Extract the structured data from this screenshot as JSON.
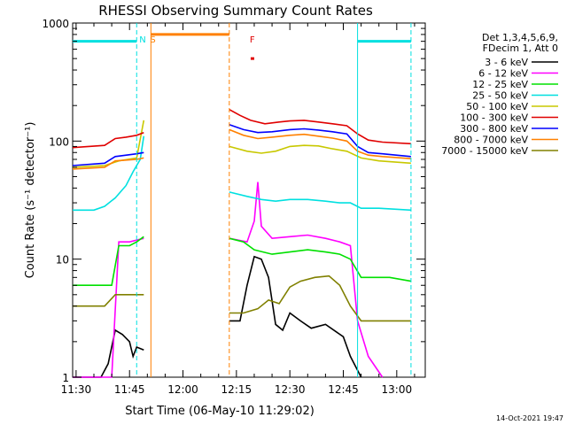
{
  "chart_data": {
    "type": "line",
    "title": "RHESSI Observing Summary Count Rates",
    "xlabel": "Start Time (06-May-10 11:29:02)",
    "ylabel": "Count Rate (s⁻¹ detector⁻¹)",
    "x_scale": "time",
    "y_scale": "log",
    "xlim": [
      "11:29:02",
      "13:08:00"
    ],
    "ylim": [
      1,
      1000
    ],
    "x_ticks": [
      "11:30",
      "11:45",
      "12:00",
      "12:15",
      "12:30",
      "12:45",
      "13:00"
    ],
    "y_ticks": [
      "1",
      "10",
      "100",
      "1000"
    ],
    "legend_header": [
      "Det 1,3,4,5,6,9,",
      "FDecim 1, Att 0"
    ],
    "legend_position": "right",
    "timestamp": "14-Oct-2021 19:47",
    "annotations": [
      {
        "text": "N",
        "x": "11:47",
        "color": "#00e0e0"
      },
      {
        "text": "S",
        "x": "11:50",
        "color": "#ff8000"
      },
      {
        "text": "F",
        "x": "12:18",
        "color": "#e00000"
      }
    ],
    "markers": [
      {
        "kind": "night-dashed",
        "x": "11:47",
        "color": "#00e0e0"
      },
      {
        "kind": "saa-solid",
        "x": "11:51",
        "color": "#ff8000"
      },
      {
        "kind": "saa-dashed",
        "x": "12:13",
        "color": "#ff8000"
      },
      {
        "kind": "night-solid",
        "x": "12:49",
        "color": "#00e0e0"
      },
      {
        "kind": "night-dashed",
        "x": "13:04",
        "color": "#00e0e0"
      }
    ],
    "flags": [
      {
        "name": "N",
        "color": "#00e0e0",
        "intervals": [
          [
            "11:29:02",
            "11:47:00"
          ],
          [
            "12:49:00",
            "13:04:00"
          ]
        ],
        "value": 700
      },
      {
        "name": "S",
        "color": "#ff8000",
        "intervals": [
          [
            "11:51:00",
            "12:13:00"
          ]
        ],
        "value": 800
      },
      {
        "name": "F",
        "color": "#e00000",
        "intervals": [
          [
            "12:19:00",
            "12:20:00"
          ]
        ],
        "value": 500
      }
    ],
    "series": [
      {
        "name": "3 - 6 keV",
        "color": "#000000",
        "segments": [
          [
            [
              "11:29:02",
              0.8
            ],
            [
              "11:37",
              0.8
            ],
            [
              "11:39",
              1.3
            ],
            [
              "11:41",
              2.5
            ],
            [
              "11:43",
              2.3
            ],
            [
              "11:45",
              2.0
            ],
            [
              "11:46",
              1.5
            ],
            [
              "11:47",
              1.8
            ],
            [
              "11:49",
              1.7
            ]
          ],
          [
            [
              "12:13",
              3.0
            ],
            [
              "12:16",
              3.0
            ],
            [
              "12:18",
              6.0
            ],
            [
              "12:20",
              10.5
            ],
            [
              "12:22",
              10.0
            ],
            [
              "12:24",
              7.0
            ],
            [
              "12:26",
              2.8
            ],
            [
              "12:28",
              2.5
            ],
            [
              "12:30",
              3.5
            ],
            [
              "12:33",
              3.0
            ],
            [
              "12:36",
              2.6
            ],
            [
              "12:40",
              2.8
            ],
            [
              "12:45",
              2.2
            ],
            [
              "12:47",
              1.5
            ],
            [
              "12:50",
              1.0
            ]
          ]
        ]
      },
      {
        "name": "6 - 12 keV",
        "color": "#ff00ff",
        "segments": [
          [
            [
              "11:29:02",
              0.8
            ],
            [
              "11:40",
              0.8
            ],
            [
              "11:42",
              14.0
            ],
            [
              "11:45",
              14.0
            ],
            [
              "11:49",
              15.0
            ]
          ],
          [
            [
              "12:13",
              15.0
            ],
            [
              "12:18",
              14.0
            ],
            [
              "12:20",
              21.0
            ],
            [
              "12:21",
              45.0
            ],
            [
              "12:22",
              19.0
            ],
            [
              "12:25",
              15.0
            ],
            [
              "12:30",
              15.5
            ],
            [
              "12:35",
              16.0
            ],
            [
              "12:40",
              15.0
            ],
            [
              "12:44",
              14.0
            ],
            [
              "12:47",
              13.0
            ],
            [
              "12:49",
              3.0
            ],
            [
              "12:52",
              1.5
            ],
            [
              "12:56",
              0.9
            ]
          ]
        ]
      },
      {
        "name": "12 - 25 keV",
        "color": "#00e000",
        "segments": [
          [
            [
              "11:29:02",
              6.0
            ],
            [
              "11:40",
              6.0
            ],
            [
              "11:42",
              13.0
            ],
            [
              "11:45",
              13.0
            ],
            [
              "11:47",
              14.0
            ],
            [
              "11:49",
              15.5
            ]
          ],
          [
            [
              "12:13",
              15.0
            ],
            [
              "12:17",
              14.0
            ],
            [
              "12:20",
              12.0
            ],
            [
              "12:25",
              11.0
            ],
            [
              "12:30",
              11.5
            ],
            [
              "12:35",
              12.0
            ],
            [
              "12:40",
              11.5
            ],
            [
              "12:44",
              11.0
            ],
            [
              "12:47",
              10.0
            ],
            [
              "12:50",
              7.0
            ],
            [
              "12:58",
              7.0
            ],
            [
              "13:04",
              6.5
            ]
          ]
        ]
      },
      {
        "name": "25 - 50 keV",
        "color": "#00e0e0",
        "segments": [
          [
            [
              "11:29:02",
              26.0
            ],
            [
              "11:35",
              26.0
            ],
            [
              "11:38",
              28.0
            ],
            [
              "11:41",
              33.0
            ],
            [
              "11:44",
              42.0
            ],
            [
              "11:46",
              55.0
            ],
            [
              "11:48",
              70.0
            ],
            [
              "11:49",
              110.0
            ]
          ],
          [
            [
              "12:13",
              37.0
            ],
            [
              "12:18",
              34.0
            ],
            [
              "12:22",
              32.0
            ],
            [
              "12:26",
              31.0
            ],
            [
              "12:30",
              32.0
            ],
            [
              "12:35",
              32.0
            ],
            [
              "12:40",
              31.0
            ],
            [
              "12:44",
              30.0
            ],
            [
              "12:47",
              30.0
            ],
            [
              "12:50",
              27.0
            ],
            [
              "12:55",
              27.0
            ],
            [
              "13:04",
              26.0
            ]
          ]
        ]
      },
      {
        "name": "50 - 100 keV",
        "color": "#c8c800",
        "segments": [
          [
            [
              "11:29:02",
              60.0
            ],
            [
              "11:38",
              62.0
            ],
            [
              "11:42",
              68.0
            ],
            [
              "11:47",
              72.0
            ],
            [
              "11:49",
              150.0
            ]
          ],
          [
            [
              "12:13",
              90.0
            ],
            [
              "12:18",
              82.0
            ],
            [
              "12:22",
              79.0
            ],
            [
              "12:26",
              82.0
            ],
            [
              "12:30",
              90.0
            ],
            [
              "12:34",
              92.0
            ],
            [
              "12:38",
              91.0
            ],
            [
              "12:42",
              86.0
            ],
            [
              "12:46",
              82.0
            ],
            [
              "12:50",
              72.0
            ],
            [
              "12:55",
              68.0
            ],
            [
              "13:04",
              65.0
            ]
          ]
        ]
      },
      {
        "name": "100 - 300 keV",
        "color": "#e00000",
        "segments": [
          [
            [
              "11:29:02",
              88.0
            ],
            [
              "11:38",
              92.0
            ],
            [
              "11:41",
              105.0
            ],
            [
              "11:44",
              108.0
            ],
            [
              "11:47",
              112.0
            ],
            [
              "11:49",
              118.0
            ]
          ],
          [
            [
              "12:13",
              185.0
            ],
            [
              "12:16",
              165.0
            ],
            [
              "12:19",
              150.0
            ],
            [
              "12:23",
              140.0
            ],
            [
              "12:27",
              145.0
            ],
            [
              "12:30",
              148.0
            ],
            [
              "12:34",
              150.0
            ],
            [
              "12:38",
              145.0
            ],
            [
              "12:42",
              140.0
            ],
            [
              "12:46",
              135.0
            ],
            [
              "12:49",
              115.0
            ],
            [
              "12:52",
              102.0
            ],
            [
              "12:56",
              98.0
            ],
            [
              "13:04",
              95.0
            ]
          ]
        ]
      },
      {
        "name": "300 - 800 keV",
        "color": "#0000ff",
        "segments": [
          [
            [
              "11:29:02",
              62.0
            ],
            [
              "11:38",
              65.0
            ],
            [
              "11:41",
              74.0
            ],
            [
              "11:47",
              78.0
            ],
            [
              "11:49",
              80.0
            ]
          ],
          [
            [
              "12:13",
              138.0
            ],
            [
              "12:17",
              125.0
            ],
            [
              "12:21",
              118.0
            ],
            [
              "12:25",
              120.0
            ],
            [
              "12:30",
              125.0
            ],
            [
              "12:34",
              127.0
            ],
            [
              "12:38",
              124.0
            ],
            [
              "12:42",
              120.0
            ],
            [
              "12:46",
              115.0
            ],
            [
              "12:49",
              90.0
            ],
            [
              "12:52",
              80.0
            ],
            [
              "12:56",
              78.0
            ],
            [
              "13:04",
              74.0
            ]
          ]
        ]
      },
      {
        "name": "800 - 7000 keV",
        "color": "#ff8000",
        "segments": [
          [
            [
              "11:29:02",
              58.0
            ],
            [
              "11:38",
              60.0
            ],
            [
              "11:41",
              68.0
            ],
            [
              "11:47",
              70.0
            ],
            [
              "11:49",
              72.0
            ]
          ],
          [
            [
              "12:13",
              125.0
            ],
            [
              "12:17",
              112.0
            ],
            [
              "12:21",
              105.0
            ],
            [
              "12:25",
              108.0
            ],
            [
              "12:30",
              112.0
            ],
            [
              "12:34",
              114.0
            ],
            [
              "12:38",
              110.0
            ],
            [
              "12:42",
              106.0
            ],
            [
              "12:46",
              100.0
            ],
            [
              "12:49",
              82.0
            ],
            [
              "12:52",
              76.0
            ],
            [
              "12:56",
              74.0
            ],
            [
              "13:04",
              71.0
            ]
          ]
        ]
      },
      {
        "name": "7000 - 15000 keV",
        "color": "#808000",
        "segments": [
          [
            [
              "11:29:02",
              4.0
            ],
            [
              "11:38",
              4.0
            ],
            [
              "11:41",
              5.0
            ],
            [
              "11:45",
              5.0
            ],
            [
              "11:49",
              5.0
            ]
          ],
          [
            [
              "12:13",
              3.5
            ],
            [
              "12:17",
              3.5
            ],
            [
              "12:21",
              3.8
            ],
            [
              "12:24",
              4.5
            ],
            [
              "12:27",
              4.2
            ],
            [
              "12:30",
              5.8
            ],
            [
              "12:33",
              6.5
            ],
            [
              "12:37",
              7.0
            ],
            [
              "12:41",
              7.2
            ],
            [
              "12:44",
              6.0
            ],
            [
              "12:47",
              4.0
            ],
            [
              "12:50",
              3.0
            ],
            [
              "12:56",
              3.0
            ],
            [
              "13:04",
              3.0
            ]
          ]
        ]
      }
    ]
  }
}
